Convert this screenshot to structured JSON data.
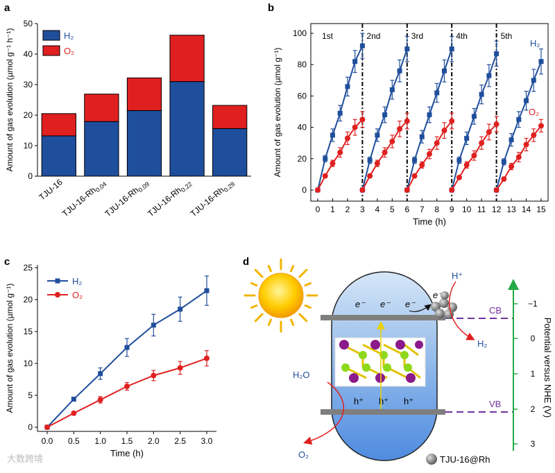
{
  "panel_labels": {
    "a": "a",
    "b": "b",
    "c": "c",
    "d": "d"
  },
  "colors": {
    "h2": "#1f4e9c",
    "o2": "#e02020",
    "band": "#7f7f7f",
    "cb_vb": "#7030a0",
    "axis_green": "#22aa44"
  },
  "watermark": "大数跨境",
  "chart_data": [
    {
      "id": "a",
      "type": "bar",
      "stacked": true,
      "ylabel": "Amount of gas evolution (µmol g⁻¹ h⁻¹)",
      "ylim": [
        0,
        50
      ],
      "yticks": [
        0,
        10,
        20,
        30,
        40,
        50
      ],
      "categories": [
        {
          "base": "TJU-16",
          "sub": ""
        },
        {
          "base": "TJU-16-Rh",
          "sub": "0.04"
        },
        {
          "base": "TJU-16-Rh",
          "sub": "0.09"
        },
        {
          "base": "TJU-16-Rh",
          "sub": "0.22"
        },
        {
          "base": "TJU-16-Rh",
          "sub": "0.29"
        }
      ],
      "series": [
        {
          "name": "H₂",
          "values": [
            13.2,
            17.9,
            21.5,
            31.0,
            15.6
          ]
        },
        {
          "name": "O₂",
          "values": [
            7.3,
            9.0,
            10.7,
            15.2,
            7.6
          ]
        }
      ],
      "legend": "top-left"
    },
    {
      "id": "b",
      "type": "line",
      "xlabel": "Time (h)",
      "ylabel": "Amount of gas evolution (µmol g⁻¹)",
      "xlim": [
        0,
        15
      ],
      "ylim": [
        0,
        100
      ],
      "xticks": [
        0,
        1,
        2,
        3,
        4,
        5,
        6,
        7,
        8,
        9,
        10,
        11,
        12,
        13,
        14,
        15
      ],
      "yticks": [
        0,
        20,
        40,
        60,
        80,
        100
      ],
      "cycle_labels": [
        "1st",
        "2nd",
        "3rd",
        "4th",
        "5th"
      ],
      "cycle_dividers": [
        3,
        6,
        9,
        12
      ],
      "series": [
        {
          "name": "H₂",
          "cycles": [
            {
              "x": [
                0,
                0.5,
                1,
                1.5,
                2,
                2.5,
                3
              ],
              "y": [
                0,
                20,
                35,
                49,
                66,
                82,
                92
              ],
              "err": [
                0,
                2,
                4,
                5,
                6,
                7,
                8
              ]
            },
            {
              "x": [
                3,
                3.5,
                4,
                4.5,
                5,
                5.5,
                6
              ],
              "y": [
                0,
                19,
                35,
                48,
                64,
                76,
                90
              ],
              "err": [
                0,
                2,
                4,
                5,
                6,
                7,
                8
              ]
            },
            {
              "x": [
                6,
                6.5,
                7,
                7.5,
                8,
                8.5,
                9
              ],
              "y": [
                0,
                19,
                34,
                48,
                62,
                76,
                90
              ],
              "err": [
                0,
                2,
                4,
                5,
                6,
                7,
                8
              ]
            },
            {
              "x": [
                9,
                9.5,
                10,
                10.5,
                11,
                11.5,
                12
              ],
              "y": [
                0,
                19,
                33,
                47,
                61,
                73,
                87
              ],
              "err": [
                0,
                2,
                4,
                5,
                6,
                7,
                8
              ]
            },
            {
              "x": [
                12,
                12.5,
                13,
                13.5,
                14,
                14.5,
                15
              ],
              "y": [
                0,
                18,
                32,
                45,
                57,
                70,
                82
              ],
              "err": [
                0,
                2,
                4,
                5,
                6,
                7,
                8
              ]
            }
          ]
        },
        {
          "name": "O₂",
          "cycles": [
            {
              "x": [
                0,
                0.5,
                1,
                1.5,
                2,
                2.5,
                3
              ],
              "y": [
                0,
                9,
                17,
                24,
                33,
                40,
                45
              ],
              "err": [
                0,
                1,
                2,
                3,
                4,
                5,
                5
              ]
            },
            {
              "x": [
                3,
                3.5,
                4,
                4.5,
                5,
                5.5,
                6
              ],
              "y": [
                0,
                9,
                17,
                24,
                31,
                39,
                44
              ],
              "err": [
                0,
                1,
                2,
                3,
                4,
                5,
                5
              ]
            },
            {
              "x": [
                6,
                6.5,
                7,
                7.5,
                8,
                8.5,
                9
              ],
              "y": [
                0,
                9,
                16,
                23,
                30,
                38,
                44
              ],
              "err": [
                0,
                1,
                2,
                3,
                4,
                5,
                5
              ]
            },
            {
              "x": [
                9,
                9.5,
                10,
                10.5,
                11,
                11.5,
                12
              ],
              "y": [
                0,
                8,
                16,
                22,
                30,
                37,
                42
              ],
              "err": [
                0,
                1,
                2,
                3,
                4,
                5,
                5
              ]
            },
            {
              "x": [
                12,
                12.5,
                13,
                13.5,
                14,
                14.5,
                15
              ],
              "y": [
                0,
                7,
                15,
                21,
                29,
                35,
                41
              ],
              "err": [
                0,
                1,
                2,
                3,
                4,
                4,
                4
              ]
            }
          ]
        }
      ],
      "series_labels": [
        "H₂",
        "O₂"
      ]
    },
    {
      "id": "c",
      "type": "line",
      "xlabel": "Time (h)",
      "ylabel": "Amount of gas evolution (µmol g⁻¹)",
      "xlim": [
        0,
        3
      ],
      "ylim": [
        0,
        25
      ],
      "xticks": [
        0.0,
        0.5,
        1.0,
        1.5,
        2.0,
        2.5,
        3.0
      ],
      "yticks": [
        0,
        5,
        10,
        15,
        20,
        25
      ],
      "series": [
        {
          "name": "H₂",
          "x": [
            0,
            0.5,
            1,
            1.5,
            2,
            2.5,
            3
          ],
          "y": [
            0,
            4.4,
            8.4,
            12.5,
            16.0,
            18.5,
            21.4
          ],
          "err": [
            0,
            0.3,
            0.9,
            1.4,
            1.7,
            1.9,
            2.3
          ]
        },
        {
          "name": "O₂",
          "x": [
            0,
            0.5,
            1,
            1.5,
            2,
            2.5,
            3
          ],
          "y": [
            0,
            2.2,
            4.3,
            6.4,
            8.1,
            9.3,
            10.8
          ],
          "err": [
            0,
            0.2,
            0.5,
            0.6,
            0.8,
            1.0,
            1.2
          ]
        }
      ],
      "legend": "top-left"
    }
  ],
  "diagram_d": {
    "electron": "e⁻",
    "hole": "h⁺",
    "cb_label": "CB",
    "vb_label": "VB",
    "h_plus": "H⁺",
    "h2": "H₂",
    "h2o": "H₂O",
    "o2": "O₂",
    "legend_text": "TJU-16@Rh",
    "axis_title": "Potential versus NHE (V)",
    "axis_ticks": [
      "−1",
      "0",
      "1",
      "2",
      "3"
    ]
  }
}
